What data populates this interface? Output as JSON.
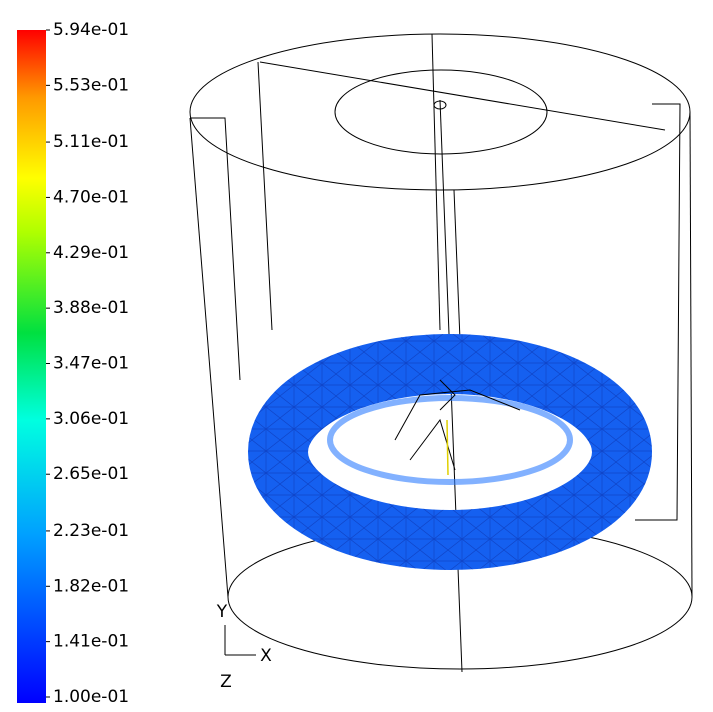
{
  "colorbar": {
    "range": [
      0.1,
      0.594
    ],
    "ticks": [
      {
        "value": 0.594,
        "label": "5.94e-01"
      },
      {
        "value": 0.553,
        "label": "5.53e-01"
      },
      {
        "value": 0.511,
        "label": "5.11e-01"
      },
      {
        "value": 0.47,
        "label": "4.70e-01"
      },
      {
        "value": 0.429,
        "label": "4.29e-01"
      },
      {
        "value": 0.388,
        "label": "3.88e-01"
      },
      {
        "value": 0.347,
        "label": "3.47e-01"
      },
      {
        "value": 0.306,
        "label": "3.06e-01"
      },
      {
        "value": 0.265,
        "label": "2.65e-01"
      },
      {
        "value": 0.223,
        "label": "2.23e-01"
      },
      {
        "value": 0.182,
        "label": "1.82e-01"
      },
      {
        "value": 0.141,
        "label": "1.41e-01"
      },
      {
        "value": 0.1,
        "label": "1.00e-01"
      }
    ]
  },
  "axes": {
    "y": "Y",
    "x": "X",
    "z": "Z"
  }
}
